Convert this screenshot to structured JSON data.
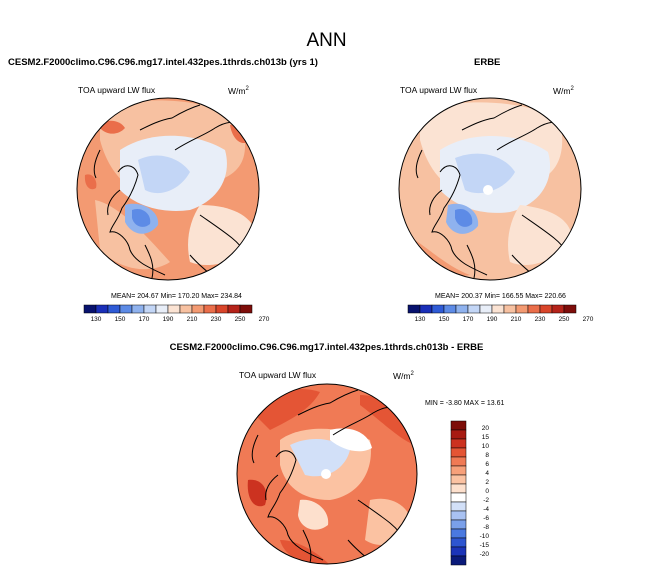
{
  "title": "ANN",
  "panels": [
    {
      "run_label": "CESM2.F2000climo.C96.C96.mg17.intel.432pes.1thrds.ch013b (yrs 1)",
      "variable": "TOA upward LW flux",
      "units": "W/m",
      "units_exp": "2",
      "stats": "MEAN= 204.67  Min= 170.20  Max= 234.84"
    },
    {
      "run_label": "ERBE",
      "variable": "TOA upward LW flux",
      "units": "W/m",
      "units_exp": "2",
      "stats": "MEAN= 200.37  Min= 166.55  Max= 220.66"
    },
    {
      "run_label": "CESM2.F2000climo.C96.C96.mg17.intel.432pes.1thrds.ch013b - ERBE",
      "variable": "TOA upward LW flux",
      "units": "W/m",
      "units_exp": "2",
      "stats": "MIN = -3.80  MAX = 13.61"
    }
  ],
  "colors": {
    "abs_scale": [
      "#08126e",
      "#1a2fb8",
      "#2f5bd6",
      "#5d8be6",
      "#8fb2ee",
      "#c3d6f6",
      "#e8eef8",
      "#fbe3d3",
      "#f7c1a1",
      "#f39a72",
      "#ea6e4a",
      "#d9452a",
      "#b5231a",
      "#7e0d0a"
    ],
    "diff_scale": [
      "#0a1a7a",
      "#1b34b8",
      "#2d55d0",
      "#4a79e0",
      "#7aa0ea",
      "#a9c2f2",
      "#d2e0f8",
      "#ffffff",
      "#fde0cd",
      "#fbc2a2",
      "#f7a07a",
      "#f07a55",
      "#e45535",
      "#cc3220",
      "#a71a12",
      "#7d0d08"
    ]
  },
  "chart_data": [
    {
      "type": "heatmap",
      "projection": "north-polar stereographic",
      "title": "CESM2.F2000climo.C96.C96.mg17.intel.432pes.1thrds.ch013b (yrs 1)",
      "variable": "TOA upward LW flux",
      "units": "W/m2",
      "mean": 204.67,
      "min": 170.2,
      "max": 234.84,
      "colorbar_levels": [
        130,
        150,
        170,
        190,
        210,
        230,
        250,
        270
      ],
      "colorbar_ticks": [
        "130",
        "150",
        "170",
        "190",
        "210",
        "230",
        "250",
        "270"
      ]
    },
    {
      "type": "heatmap",
      "projection": "north-polar stereographic",
      "title": "ERBE",
      "variable": "TOA upward LW flux",
      "units": "W/m2",
      "mean": 200.37,
      "min": 166.55,
      "max": 220.66,
      "colorbar_levels": [
        130,
        150,
        170,
        190,
        210,
        230,
        250,
        270
      ],
      "colorbar_ticks": [
        "130",
        "150",
        "170",
        "190",
        "210",
        "230",
        "250",
        "270"
      ]
    },
    {
      "type": "heatmap",
      "projection": "north-polar stereographic",
      "title": "CESM2.F2000climo.C96.C96.mg17.intel.432pes.1thrds.ch013b - ERBE",
      "variable": "TOA upward LW flux",
      "units": "W/m2",
      "min": -3.8,
      "max": 13.61,
      "colorbar_levels": [
        -20,
        -15,
        -10,
        -8,
        -6,
        -4,
        -2,
        0,
        2,
        4,
        6,
        8,
        10,
        15,
        20
      ],
      "colorbar_ticks": [
        "20",
        "15",
        "10",
        "8",
        "6",
        "4",
        "2",
        "0",
        "-2",
        "-4",
        "-6",
        "-8",
        "-10",
        "-15",
        "-20"
      ]
    }
  ]
}
